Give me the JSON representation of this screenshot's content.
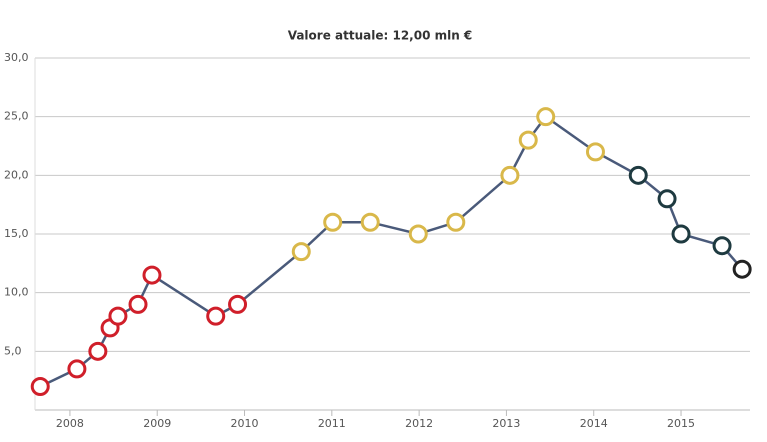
{
  "chart_data": {
    "type": "line",
    "title": "Valore attuale: 12,00 mln €",
    "x": [
      2007.66,
      2008.08,
      2008.32,
      2008.46,
      2008.55,
      2008.78,
      2008.94,
      2009.67,
      2009.92,
      2010.65,
      2011.01,
      2011.44,
      2011.99,
      2012.42,
      2013.04,
      2013.25,
      2013.45,
      2014.02,
      2014.51,
      2014.84,
      2015.0,
      2015.47,
      2015.7
    ],
    "values": [
      2,
      3.5,
      5,
      7,
      8,
      9,
      11.5,
      8,
      9,
      13.5,
      16,
      16,
      15,
      16,
      20,
      23,
      25,
      22,
      20,
      18,
      15,
      14,
      12
    ],
    "color": "#4a5a7a",
    "point_colors": [
      "#d01f2a",
      "#d01f2a",
      "#d01f2a",
      "#d01f2a",
      "#d01f2a",
      "#d01f2a",
      "#d01f2a",
      "#d01f2a",
      "#d01f2a",
      "#d9b84a",
      "#d9b84a",
      "#d9b84a",
      "#d9b84a",
      "#d9b84a",
      "#d9b84a",
      "#d9b84a",
      "#d9b84a",
      "#d9b84a",
      "#1e3a40",
      "#1e3a40",
      "#1e3a40",
      "#1e3a40",
      "#222222"
    ],
    "xlim": [
      2007.6,
      2015.79
    ],
    "xticks": [
      2008,
      2009,
      2010,
      2011,
      2012,
      2013,
      2014,
      2015
    ],
    "ylim": [
      0,
      30
    ],
    "yticks": [
      {
        "value": 5,
        "label": "5,0"
      },
      {
        "value": 10,
        "label": "10,0"
      },
      {
        "value": 15,
        "label": "15,0"
      },
      {
        "value": 20,
        "label": "20,0"
      },
      {
        "value": 25,
        "label": "25,0"
      },
      {
        "value": 30,
        "label": "30,0"
      }
    ],
    "grid": true
  }
}
